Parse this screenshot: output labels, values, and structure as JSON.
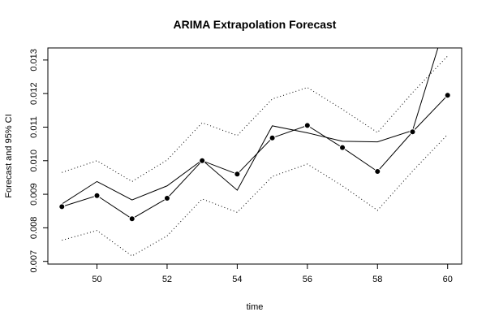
{
  "chart_data": {
    "type": "line",
    "title": "ARIMA Extrapolation Forecast",
    "xlabel": "time",
    "ylabel": "Forecast and 95% CI",
    "xlim": [
      48.6,
      60.4
    ],
    "ylim": [
      0.00692,
      0.01336
    ],
    "x_ticks": [
      50,
      52,
      54,
      56,
      58,
      60
    ],
    "y_ticks": [
      0.007,
      0.008,
      0.009,
      0.01,
      0.011,
      0.012,
      0.013
    ],
    "x_tick_labels": [
      "50",
      "52",
      "54",
      "56",
      "58",
      "60"
    ],
    "y_tick_labels": [
      "0.007",
      "0.008",
      "0.009",
      "0.010",
      "0.011",
      "0.012",
      "0.013"
    ],
    "grid": false,
    "x": [
      49,
      50,
      51,
      52,
      53,
      54,
      55,
      56,
      57,
      58,
      59,
      60
    ],
    "series": [
      {
        "name": "",
        "style": "solid-line",
        "values": [
          0.00871,
          0.00938,
          0.00883,
          0.00925,
          0.01002,
          0.00912,
          0.01104,
          0.01083,
          0.01058,
          0.01056,
          0.0109,
          0.0143
        ]
      },
      {
        "name": "",
        "style": "points-with-line",
        "values": [
          0.00863,
          0.00896,
          0.00827,
          0.00888,
          0.01,
          0.0096,
          0.01068,
          0.01105,
          0.01039,
          0.00968,
          0.01086,
          0.01195
        ]
      },
      {
        "name": "",
        "style": "dotted-upper",
        "values": [
          0.00965,
          0.01,
          0.00938,
          0.01002,
          0.01113,
          0.01075,
          0.01184,
          0.01218,
          0.01153,
          0.01084,
          0.01203,
          0.01312
        ]
      },
      {
        "name": "",
        "style": "dotted-lower",
        "values": [
          0.00763,
          0.00792,
          0.00716,
          0.00776,
          0.00886,
          0.00846,
          0.00953,
          0.0099,
          0.00925,
          0.00852,
          0.00969,
          0.01078
        ]
      }
    ]
  }
}
